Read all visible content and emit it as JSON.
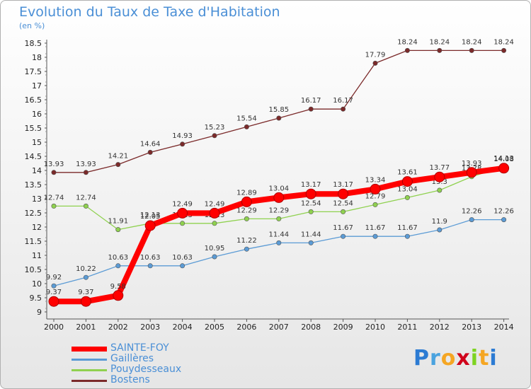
{
  "chart_data": {
    "type": "line",
    "title": "Evolution du Taux de Taxe d'Habitation",
    "unit_label": "(en %)",
    "x": [
      "2000",
      "2001",
      "2002",
      "2003",
      "2004",
      "2005",
      "2006",
      "2007",
      "2008",
      "2009",
      "2010",
      "2011",
      "2012",
      "2013",
      "2014"
    ],
    "ylim": [
      9,
      18.5
    ],
    "yticks": [
      "9",
      "9.5",
      "10",
      "10.5",
      "11",
      "11.5",
      "12",
      "12.5",
      "13",
      "13.5",
      "14",
      "14.5",
      "15",
      "15.5",
      "16",
      "16.5",
      "17",
      "17.5",
      "18",
      "18.5"
    ],
    "grid": false,
    "legend_position": "bottom-left",
    "series": [
      {
        "name": "Bostens",
        "color": "#7b2a2a",
        "values": [
          13.93,
          13.93,
          14.21,
          14.64,
          14.93,
          15.23,
          15.54,
          15.85,
          16.17,
          16.17,
          17.79,
          18.24,
          18.24,
          18.24,
          18.24
        ],
        "labels": [
          "13.93",
          "13.93",
          "14.21",
          "14.64",
          "14.93",
          "15.23",
          "15.54",
          "15.85",
          "16.17",
          "16.17",
          "17.79",
          "18.24",
          "18.24",
          "18.24",
          "18.24"
        ]
      },
      {
        "name": "Pouydesseaux",
        "color": "#8fd14f",
        "values": [
          12.74,
          12.74,
          11.91,
          12.13,
          12.13,
          12.13,
          12.29,
          12.29,
          12.54,
          12.54,
          12.79,
          13.04,
          13.3,
          13.78,
          14.13
        ],
        "labels": [
          "12.74",
          "12.74",
          "11.91",
          "12.13",
          "12.13",
          "12.13",
          "12.29",
          "12.29",
          "12.54",
          "12.54",
          "12.79",
          "13.04",
          "13.3",
          "13.78",
          "14.13"
        ]
      },
      {
        "name": "Gaillères",
        "color": "#5b9bd5",
        "values": [
          9.92,
          10.22,
          10.63,
          10.63,
          10.63,
          10.95,
          11.22,
          11.44,
          11.44,
          11.67,
          11.67,
          11.67,
          11.9,
          12.26,
          12.26
        ],
        "labels": [
          "9.92",
          "10.22",
          "10.63",
          "10.63",
          "10.63",
          "10.95",
          "11.22",
          "11.44",
          "11.44",
          "11.67",
          "11.67",
          "11.67",
          "11.9",
          "12.26",
          "12.26"
        ]
      },
      {
        "name": "SAINTE-FOY",
        "color": "#ff0000",
        "values": [
          9.37,
          9.37,
          9.58,
          12.05,
          12.49,
          12.49,
          12.89,
          13.04,
          13.17,
          13.17,
          13.34,
          13.61,
          13.77,
          13.93,
          14.08
        ],
        "labels": [
          "9.37",
          "9.37",
          "9.58",
          "12.05",
          "12.49",
          "12.49",
          "12.89",
          "13.04",
          "13.17",
          "13.17",
          "13.34",
          "13.61",
          "13.77",
          "13.93",
          "14.08"
        ]
      }
    ]
  },
  "legend": [
    {
      "label": "SAINTE-FOY",
      "color": "#ff0000"
    },
    {
      "label": "Gaillères",
      "color": "#5b9bd5"
    },
    {
      "label": "Pouydesseaux",
      "color": "#8fd14f"
    },
    {
      "label": "Bostens",
      "color": "#7b2a2a"
    }
  ],
  "logo": {
    "letters": [
      "P",
      "r",
      "o",
      "x",
      "i",
      "t",
      "i"
    ],
    "colors": [
      "#2c7bd3",
      "#4aa3df",
      "#f5a623",
      "#d0021b",
      "#7ed321",
      "#f5a623",
      "#2c7bd3"
    ]
  }
}
